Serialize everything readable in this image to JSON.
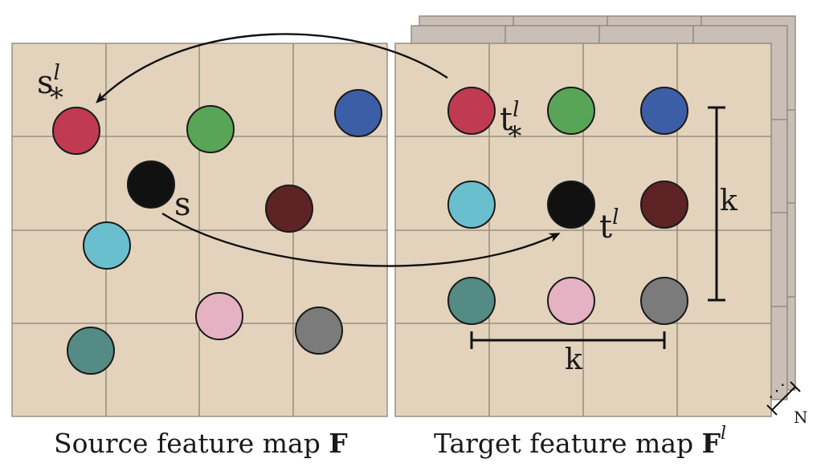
{
  "labels": {
    "s_star": "s",
    "s_star_sup": "l",
    "s_star_sub": "*",
    "s": "s",
    "t_star": "t",
    "t_star_sup": "l",
    "t_star_sub": "*",
    "t": "t",
    "t_sup": "l",
    "k_vertical": "k",
    "k_horizontal": "k",
    "n": "N",
    "ellipsis": "⋰"
  },
  "captions": {
    "source_prefix": "Source feature map ",
    "source_symbol": "F",
    "target_prefix": "Target feature map ",
    "target_symbol": "F",
    "target_sup": "l"
  },
  "colors": {
    "map_fill": "#e3d3bc",
    "grid_line": "#8a8276",
    "stack_fill": "#c9bfb7",
    "red": "#c03a52",
    "green": "#58a557",
    "blue": "#3c5ea6",
    "black": "#111111",
    "maroon": "#5e2324",
    "cyan": "#6abfce",
    "pink": "#e5b2c3",
    "gray": "#7b7b7b",
    "teal": "#548b85"
  },
  "source_points": [
    {
      "name": "source-point-red",
      "color": "red"
    },
    {
      "name": "source-point-green",
      "color": "green"
    },
    {
      "name": "source-point-blue",
      "color": "blue"
    },
    {
      "name": "source-point-black",
      "color": "black"
    },
    {
      "name": "source-point-maroon",
      "color": "maroon"
    },
    {
      "name": "source-point-cyan",
      "color": "cyan"
    },
    {
      "name": "source-point-pink",
      "color": "pink"
    },
    {
      "name": "source-point-gray",
      "color": "gray"
    },
    {
      "name": "source-point-teal",
      "color": "teal"
    }
  ],
  "target_points": [
    {
      "name": "target-point-red",
      "color": "red"
    },
    {
      "name": "target-point-green",
      "color": "green"
    },
    {
      "name": "target-point-blue",
      "color": "blue"
    },
    {
      "name": "target-point-cyan",
      "color": "cyan"
    },
    {
      "name": "target-point-black",
      "color": "black"
    },
    {
      "name": "target-point-maroon",
      "color": "maroon"
    },
    {
      "name": "target-point-teal",
      "color": "teal"
    },
    {
      "name": "target-point-pink",
      "color": "pink"
    },
    {
      "name": "target-point-gray",
      "color": "gray"
    }
  ]
}
